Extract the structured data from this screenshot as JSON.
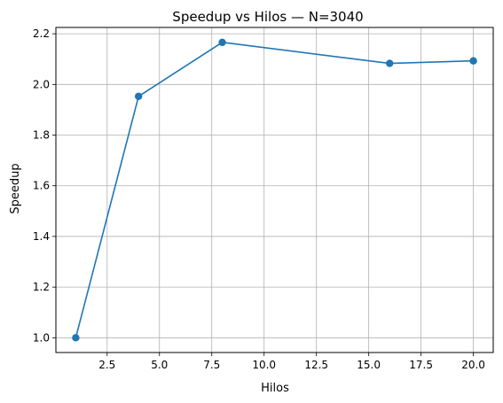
{
  "chart_data": {
    "type": "line",
    "title": "Speedup vs Hilos — N=3040",
    "xlabel": "Hilos",
    "ylabel": "Speedup",
    "xlim": [
      0.05,
      20.95
    ],
    "ylim": [
      0.9417,
      2.2249
    ],
    "xticks": [
      2.5,
      5.0,
      7.5,
      10.0,
      12.5,
      15.0,
      17.5,
      20.0
    ],
    "xtick_labels": [
      "2.5",
      "5.0",
      "7.5",
      "10.0",
      "12.5",
      "15.0",
      "17.5",
      "20.0"
    ],
    "yticks": [
      1.0,
      1.2,
      1.4,
      1.6,
      1.8,
      2.0,
      2.2
    ],
    "ytick_labels": [
      "1.0",
      "1.2",
      "1.4",
      "1.6",
      "1.8",
      "2.0",
      "2.2"
    ],
    "grid": true,
    "legend": "none",
    "series": [
      {
        "x": [
          1,
          4,
          8,
          16,
          20
        ],
        "y": [
          1.0,
          1.953,
          2.166,
          2.083,
          2.093
        ],
        "color": "#1f77b4",
        "marker": "circle"
      }
    ]
  }
}
